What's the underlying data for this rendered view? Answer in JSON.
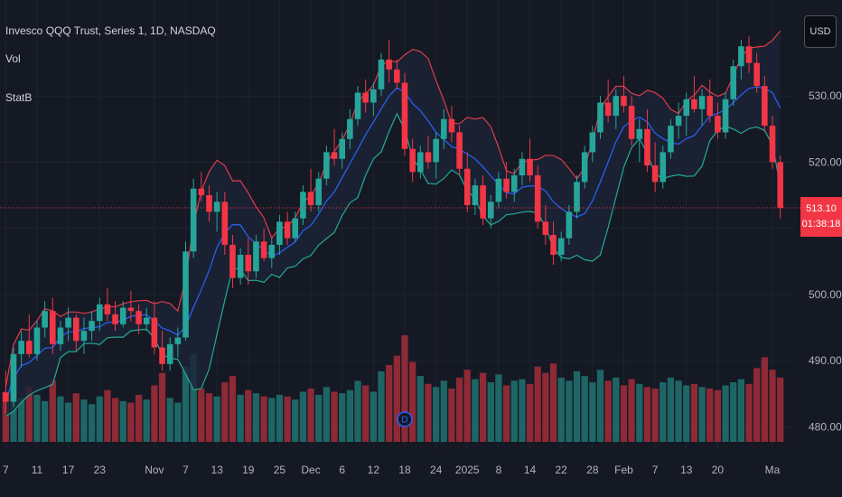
{
  "header": {
    "title": "Invesco QQQ Trust, Series 1, 1D, NASDAQ",
    "vol_label": "Vol",
    "indicator_label": "StatB"
  },
  "currency": "USD",
  "last_price": {
    "value": "513.10",
    "countdown": "01:38:18"
  },
  "colors": {
    "background": "#151924",
    "grid": "#1f2330",
    "up": "#26a69a",
    "down": "#f23645",
    "upper_band": "#e03b4c",
    "middle_band": "#2962ff",
    "lower_band": "#22ab94",
    "band_fill": "#1c2336"
  },
  "markers": [
    {
      "label": "D",
      "date_index": 51,
      "color": "#2962ff"
    },
    {
      "label": "⚡",
      "date_index": 120,
      "color": "#c660d8"
    }
  ],
  "chart_data": {
    "type": "candlestick",
    "title": "Invesco QQQ Trust, Series 1, 1D, NASDAQ",
    "ylim": [
      476.5,
      544.5
    ],
    "y_ticks": [
      480,
      490,
      500,
      510,
      520,
      530
    ],
    "x_tick_labels": [
      "7",
      "11",
      "17",
      "23",
      "Nov",
      "7",
      "13",
      "19",
      "25",
      "Dec",
      "6",
      "12",
      "18",
      "24",
      "2025",
      "8",
      "14",
      "22",
      "28",
      "Feb",
      "7",
      "13",
      "20",
      "Ma"
    ],
    "x_tick_index": [
      0,
      4,
      8,
      12,
      19,
      23,
      27,
      31,
      35,
      39,
      43,
      47,
      51,
      55,
      59,
      63,
      67,
      71,
      75,
      79,
      83,
      87,
      91,
      98
    ],
    "grid": true,
    "series": [
      {
        "name": "Price",
        "ohlc": [
          [
            485.2,
            488.5,
            482.0,
            483.8
          ],
          [
            483.8,
            492.0,
            483.0,
            491.0
          ],
          [
            491.0,
            494.5,
            489.0,
            493.0
          ],
          [
            493.0,
            497.0,
            490.5,
            491.0
          ],
          [
            491.0,
            496.0,
            490.0,
            495.0
          ],
          [
            495.0,
            499.0,
            493.5,
            497.5
          ],
          [
            497.5,
            499.5,
            491.0,
            492.5
          ],
          [
            492.5,
            496.0,
            491.5,
            495.0
          ],
          [
            495.0,
            498.0,
            493.0,
            496.5
          ],
          [
            496.5,
            497.0,
            491.5,
            493.0
          ],
          [
            493.0,
            496.5,
            491.0,
            494.5
          ],
          [
            494.5,
            497.5,
            493.0,
            496.0
          ],
          [
            496.0,
            499.5,
            494.5,
            498.5
          ],
          [
            498.5,
            501.0,
            496.0,
            497.0
          ],
          [
            497.0,
            499.0,
            494.5,
            495.5
          ],
          [
            495.5,
            499.0,
            495.0,
            498.0
          ],
          [
            498.0,
            500.5,
            496.0,
            497.5
          ],
          [
            497.5,
            498.5,
            494.0,
            495.5
          ],
          [
            495.5,
            498.0,
            494.5,
            496.5
          ],
          [
            496.5,
            499.0,
            491.0,
            492.0
          ],
          [
            492.0,
            494.5,
            488.5,
            489.5
          ],
          [
            489.5,
            493.5,
            488.5,
            492.5
          ],
          [
            492.5,
            495.0,
            490.5,
            493.5
          ],
          [
            493.5,
            508.0,
            493.0,
            506.5
          ],
          [
            506.5,
            517.5,
            505.5,
            516.0
          ],
          [
            516.0,
            518.5,
            514.0,
            515.0
          ],
          [
            515.0,
            516.5,
            511.0,
            512.5
          ],
          [
            512.5,
            515.5,
            509.5,
            514.0
          ],
          [
            514.0,
            515.5,
            506.0,
            507.5
          ],
          [
            507.5,
            509.0,
            501.0,
            502.5
          ],
          [
            502.5,
            507.0,
            501.5,
            506.0
          ],
          [
            506.0,
            508.5,
            501.5,
            503.5
          ],
          [
            503.5,
            509.0,
            502.5,
            508.0
          ],
          [
            508.0,
            510.0,
            505.0,
            505.5
          ],
          [
            505.5,
            508.5,
            504.0,
            507.5
          ],
          [
            507.5,
            512.0,
            506.0,
            511.0
          ],
          [
            511.0,
            512.5,
            507.5,
            508.5
          ],
          [
            508.5,
            512.5,
            508.0,
            511.5
          ],
          [
            511.5,
            516.5,
            510.5,
            515.5
          ],
          [
            515.5,
            519.0,
            512.5,
            513.5
          ],
          [
            513.5,
            518.5,
            512.5,
            517.5
          ],
          [
            517.5,
            522.5,
            516.5,
            521.5
          ],
          [
            521.5,
            525.0,
            519.5,
            520.5
          ],
          [
            520.5,
            524.5,
            519.0,
            523.5
          ],
          [
            523.5,
            528.0,
            522.0,
            526.5
          ],
          [
            526.5,
            531.5,
            525.5,
            530.5
          ],
          [
            530.5,
            532.5,
            527.5,
            529.0
          ],
          [
            529.0,
            532.0,
            527.0,
            531.0
          ],
          [
            531.0,
            536.5,
            530.0,
            535.5
          ],
          [
            535.5,
            538.5,
            532.0,
            534.0
          ],
          [
            534.0,
            535.5,
            531.0,
            532.0
          ],
          [
            532.0,
            533.5,
            521.0,
            522.0
          ],
          [
            522.0,
            523.5,
            517.0,
            518.5
          ],
          [
            518.5,
            522.5,
            517.5,
            521.5
          ],
          [
            521.5,
            524.0,
            519.0,
            520.0
          ],
          [
            520.0,
            524.5,
            517.5,
            523.5
          ],
          [
            523.5,
            528.0,
            522.0,
            526.5
          ],
          [
            526.5,
            528.5,
            523.0,
            524.5
          ],
          [
            524.5,
            525.5,
            518.0,
            519.0
          ],
          [
            519.0,
            521.5,
            512.5,
            513.5
          ],
          [
            513.5,
            517.5,
            512.0,
            516.5
          ],
          [
            516.5,
            518.0,
            510.5,
            511.5
          ],
          [
            511.5,
            515.0,
            510.0,
            514.0
          ],
          [
            514.0,
            518.5,
            513.0,
            517.5
          ],
          [
            517.5,
            520.0,
            514.5,
            515.5
          ],
          [
            515.5,
            519.0,
            514.0,
            518.0
          ],
          [
            518.0,
            521.5,
            516.5,
            520.5
          ],
          [
            520.5,
            523.5,
            517.0,
            518.0
          ],
          [
            518.0,
            519.5,
            510.0,
            511.0
          ],
          [
            511.0,
            513.5,
            507.5,
            509.0
          ],
          [
            509.0,
            511.0,
            504.5,
            506.0
          ],
          [
            506.0,
            509.5,
            505.0,
            508.5
          ],
          [
            508.5,
            513.5,
            507.5,
            512.5
          ],
          [
            512.5,
            518.0,
            511.5,
            517.0
          ],
          [
            517.0,
            522.5,
            516.0,
            521.5
          ],
          [
            521.5,
            525.5,
            520.0,
            524.5
          ],
          [
            524.5,
            530.0,
            523.5,
            529.0
          ],
          [
            529.0,
            532.5,
            526.0,
            527.0
          ],
          [
            527.0,
            531.0,
            525.0,
            530.0
          ],
          [
            530.0,
            533.0,
            527.5,
            528.5
          ],
          [
            528.5,
            530.0,
            522.5,
            523.5
          ],
          [
            523.5,
            526.5,
            520.0,
            525.0
          ],
          [
            525.0,
            528.0,
            518.5,
            519.5
          ],
          [
            519.5,
            523.0,
            515.5,
            517.0
          ],
          [
            517.0,
            522.5,
            516.0,
            521.5
          ],
          [
            521.5,
            526.5,
            520.5,
            525.5
          ],
          [
            525.5,
            529.0,
            523.5,
            527.0
          ],
          [
            527.0,
            530.5,
            524.0,
            529.5
          ],
          [
            529.5,
            533.0,
            527.5,
            528.0
          ],
          [
            528.0,
            531.0,
            525.5,
            530.0
          ],
          [
            530.0,
            532.5,
            526.0,
            527.0
          ],
          [
            527.0,
            529.0,
            523.5,
            524.5
          ],
          [
            524.5,
            530.5,
            523.5,
            529.5
          ],
          [
            529.5,
            535.5,
            528.5,
            534.5
          ],
          [
            534.5,
            538.5,
            532.5,
            537.5
          ],
          [
            537.5,
            539.0,
            533.5,
            535.0
          ],
          [
            535.0,
            536.5,
            530.5,
            531.5
          ],
          [
            531.5,
            533.0,
            524.5,
            525.5
          ],
          [
            525.5,
            527.0,
            519.0,
            520.0
          ],
          [
            520.0,
            521.0,
            511.5,
            513.1
          ]
        ]
      },
      {
        "name": "Vol",
        "values": [
          [
            3.2,
            "down"
          ],
          [
            4.1,
            "up"
          ],
          [
            2.8,
            "up"
          ],
          [
            3.5,
            "down"
          ],
          [
            3.0,
            "up"
          ],
          [
            2.6,
            "up"
          ],
          [
            3.9,
            "down"
          ],
          [
            2.9,
            "up"
          ],
          [
            2.5,
            "up"
          ],
          [
            3.1,
            "down"
          ],
          [
            2.7,
            "up"
          ],
          [
            2.4,
            "up"
          ],
          [
            2.9,
            "up"
          ],
          [
            3.3,
            "down"
          ],
          [
            2.8,
            "down"
          ],
          [
            2.6,
            "up"
          ],
          [
            2.5,
            "down"
          ],
          [
            3.0,
            "down"
          ],
          [
            2.7,
            "up"
          ],
          [
            3.6,
            "down"
          ],
          [
            4.4,
            "down"
          ],
          [
            2.8,
            "up"
          ],
          [
            2.5,
            "up"
          ],
          [
            4.8,
            "up"
          ],
          [
            5.6,
            "up"
          ],
          [
            3.4,
            "down"
          ],
          [
            3.1,
            "down"
          ],
          [
            2.9,
            "up"
          ],
          [
            3.8,
            "down"
          ],
          [
            4.2,
            "down"
          ],
          [
            3.0,
            "up"
          ],
          [
            3.3,
            "down"
          ],
          [
            3.1,
            "up"
          ],
          [
            2.9,
            "down"
          ],
          [
            2.8,
            "up"
          ],
          [
            3.0,
            "up"
          ],
          [
            2.9,
            "down"
          ],
          [
            2.7,
            "up"
          ],
          [
            3.2,
            "up"
          ],
          [
            3.4,
            "down"
          ],
          [
            3.0,
            "up"
          ],
          [
            3.5,
            "up"
          ],
          [
            3.2,
            "down"
          ],
          [
            3.1,
            "up"
          ],
          [
            3.3,
            "up"
          ],
          [
            3.9,
            "up"
          ],
          [
            3.6,
            "down"
          ],
          [
            3.2,
            "up"
          ],
          [
            4.5,
            "up"
          ],
          [
            4.9,
            "down"
          ],
          [
            5.5,
            "down"
          ],
          [
            6.8,
            "down"
          ],
          [
            5.1,
            "down"
          ],
          [
            4.2,
            "up"
          ],
          [
            3.7,
            "down"
          ],
          [
            3.5,
            "up"
          ],
          [
            3.9,
            "up"
          ],
          [
            3.4,
            "down"
          ],
          [
            4.1,
            "down"
          ],
          [
            4.6,
            "down"
          ],
          [
            4.0,
            "up"
          ],
          [
            4.4,
            "down"
          ],
          [
            3.8,
            "up"
          ],
          [
            4.3,
            "up"
          ],
          [
            3.6,
            "down"
          ],
          [
            3.9,
            "up"
          ],
          [
            4.0,
            "up"
          ],
          [
            3.7,
            "down"
          ],
          [
            4.8,
            "down"
          ],
          [
            4.4,
            "down"
          ],
          [
            5.0,
            "down"
          ],
          [
            4.1,
            "up"
          ],
          [
            3.9,
            "up"
          ],
          [
            4.5,
            "up"
          ],
          [
            4.2,
            "up"
          ],
          [
            3.8,
            "up"
          ],
          [
            4.6,
            "up"
          ],
          [
            3.9,
            "down"
          ],
          [
            4.1,
            "up"
          ],
          [
            3.6,
            "down"
          ],
          [
            4.0,
            "down"
          ],
          [
            3.7,
            "up"
          ],
          [
            3.5,
            "down"
          ],
          [
            3.4,
            "down"
          ],
          [
            3.8,
            "up"
          ],
          [
            4.1,
            "up"
          ],
          [
            3.9,
            "up"
          ],
          [
            3.6,
            "up"
          ],
          [
            3.7,
            "down"
          ],
          [
            3.5,
            "up"
          ],
          [
            3.4,
            "down"
          ],
          [
            3.3,
            "down"
          ],
          [
            3.6,
            "up"
          ],
          [
            3.8,
            "up"
          ],
          [
            4.0,
            "up"
          ],
          [
            3.7,
            "down"
          ],
          [
            4.7,
            "down"
          ],
          [
            5.4,
            "down"
          ],
          [
            4.6,
            "down"
          ],
          [
            4.1,
            "down"
          ]
        ]
      }
    ]
  }
}
